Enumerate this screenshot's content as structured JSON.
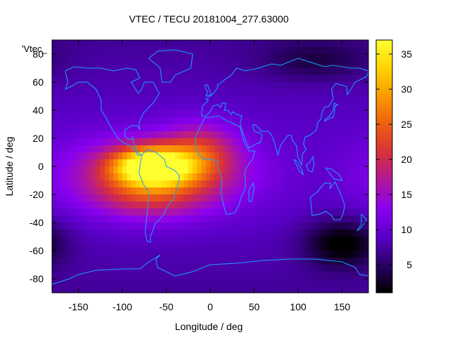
{
  "chart_data": {
    "type": "heatmap",
    "title": "VTEC / TECU 20181004_277.63000",
    "xlabel": "Longitude / deg",
    "ylabel": "Latitude / deg",
    "xlim": [
      -180,
      180
    ],
    "ylim": [
      -90,
      90
    ],
    "xticks": [
      -150,
      -100,
      -50,
      0,
      50,
      100,
      150
    ],
    "yticks": [
      -80,
      -60,
      -40,
      -20,
      0,
      20,
      40,
      60,
      80
    ],
    "colorbar": {
      "ticks": [
        5,
        10,
        15,
        20,
        25,
        30,
        35
      ],
      "range": [
        1,
        37
      ],
      "colormap": [
        "#000000",
        "#2a0066",
        "#5a00c8",
        "#8a00f0",
        "#b0189a",
        "#d8303a",
        "#ee6010",
        "#fb9a00",
        "#ffd400",
        "#ffff30"
      ]
    },
    "series_label": "'Vtec_",
    "grid_step_deg": 5,
    "field_model": {
      "background": 9,
      "features": [
        {
          "name": "equatorial-anomaly-peak",
          "lon": -65,
          "lat": 0,
          "amp": 26,
          "sigma_lon": 30,
          "sigma_lat": 9
        },
        {
          "name": "equatorial-band",
          "lon": -60,
          "lat": -5,
          "amp": 13,
          "sigma_lon": 70,
          "sigma_lat": 18
        },
        {
          "name": "south-crest",
          "lon": -70,
          "lat": -22,
          "amp": 6,
          "sigma_lon": 45,
          "sigma_lat": 12
        },
        {
          "name": "atlantic-lobe",
          "lon": -10,
          "lat": 12,
          "amp": 8,
          "sigma_lon": 28,
          "sigma_lat": 14
        },
        {
          "name": "antarctic-low",
          "lon": 150,
          "lat": -55,
          "amp": -8,
          "sigma_lon": 30,
          "sigma_lat": 12
        },
        {
          "name": "siberian-low",
          "lon": 120,
          "lat": 75,
          "amp": -4,
          "sigma_lon": 45,
          "sigma_lat": 10
        }
      ]
    },
    "coastlines": [
      {
        "name": "north-america",
        "lonlat": [
          [
            -165,
            68
          ],
          [
            -155,
            71
          ],
          [
            -140,
            70
          ],
          [
            -125,
            70
          ],
          [
            -110,
            68
          ],
          [
            -95,
            70
          ],
          [
            -85,
            69
          ],
          [
            -80,
            63
          ],
          [
            -90,
            60
          ],
          [
            -82,
            52
          ],
          [
            -78,
            55
          ],
          [
            -75,
            60
          ],
          [
            -65,
            60
          ],
          [
            -58,
            52
          ],
          [
            -65,
            45
          ],
          [
            -70,
            42
          ],
          [
            -76,
            38
          ],
          [
            -81,
            31
          ],
          [
            -80,
            26
          ],
          [
            -83,
            29
          ],
          [
            -90,
            29
          ],
          [
            -97,
            26
          ],
          [
            -97,
            21
          ],
          [
            -91,
            19
          ],
          [
            -88,
            21
          ],
          [
            -87,
            16
          ],
          [
            -83,
            10
          ],
          [
            -78,
            8
          ],
          [
            -83,
            8
          ],
          [
            -86,
            12
          ],
          [
            -92,
            15
          ],
          [
            -99,
            17
          ],
          [
            -105,
            20
          ],
          [
            -110,
            25
          ],
          [
            -115,
            30
          ],
          [
            -118,
            34
          ],
          [
            -124,
            40
          ],
          [
            -124,
            47
          ],
          [
            -130,
            55
          ],
          [
            -140,
            60
          ],
          [
            -150,
            60
          ],
          [
            -158,
            57
          ],
          [
            -165,
            55
          ],
          [
            -162,
            60
          ],
          [
            -165,
            68
          ]
        ]
      },
      {
        "name": "south-america",
        "lonlat": [
          [
            -78,
            8
          ],
          [
            -72,
            12
          ],
          [
            -62,
            10
          ],
          [
            -52,
            5
          ],
          [
            -50,
            0
          ],
          [
            -40,
            -3
          ],
          [
            -35,
            -7
          ],
          [
            -37,
            -13
          ],
          [
            -39,
            -18
          ],
          [
            -41,
            -22
          ],
          [
            -48,
            -28
          ],
          [
            -53,
            -34
          ],
          [
            -58,
            -38
          ],
          [
            -63,
            -41
          ],
          [
            -65,
            -45
          ],
          [
            -68,
            -50
          ],
          [
            -68,
            -54
          ],
          [
            -72,
            -53
          ],
          [
            -74,
            -47
          ],
          [
            -73,
            -40
          ],
          [
            -71,
            -30
          ],
          [
            -70,
            -18
          ],
          [
            -76,
            -13
          ],
          [
            -81,
            -5
          ],
          [
            -80,
            0
          ],
          [
            -78,
            8
          ]
        ]
      },
      {
        "name": "africa",
        "lonlat": [
          [
            -17,
            21
          ],
          [
            -16,
            12
          ],
          [
            -12,
            8
          ],
          [
            -8,
            5
          ],
          [
            0,
            5
          ],
          [
            8,
            4
          ],
          [
            9,
            -1
          ],
          [
            12,
            -6
          ],
          [
            13,
            -12
          ],
          [
            12,
            -18
          ],
          [
            15,
            -27
          ],
          [
            18,
            -34
          ],
          [
            22,
            -34
          ],
          [
            28,
            -33
          ],
          [
            33,
            -27
          ],
          [
            35,
            -22
          ],
          [
            40,
            -16
          ],
          [
            40,
            -10
          ],
          [
            39,
            -5
          ],
          [
            42,
            0
          ],
          [
            48,
            5
          ],
          [
            51,
            11
          ],
          [
            44,
            11
          ],
          [
            38,
            18
          ],
          [
            34,
            28
          ],
          [
            25,
            31
          ],
          [
            20,
            32
          ],
          [
            10,
            36
          ],
          [
            0,
            35
          ],
          [
            -6,
            35
          ],
          [
            -10,
            30
          ],
          [
            -17,
            21
          ]
        ]
      },
      {
        "name": "eurasia",
        "lonlat": [
          [
            -10,
            36
          ],
          [
            -9,
            43
          ],
          [
            -2,
            47
          ],
          [
            -5,
            48
          ],
          [
            0,
            50
          ],
          [
            5,
            53
          ],
          [
            9,
            57
          ],
          [
            8,
            58
          ],
          [
            11,
            59
          ],
          [
            17,
            62
          ],
          [
            24,
            65
          ],
          [
            30,
            70
          ],
          [
            40,
            68
          ],
          [
            55,
            70
          ],
          [
            70,
            73
          ],
          [
            80,
            72
          ],
          [
            100,
            77
          ],
          [
            115,
            74
          ],
          [
            130,
            71
          ],
          [
            140,
            72
          ],
          [
            160,
            70
          ],
          [
            170,
            70
          ],
          [
            180,
            68
          ],
          [
            178,
            64
          ],
          [
            165,
            60
          ],
          [
            160,
            55
          ],
          [
            156,
            51
          ],
          [
            155,
            57
          ],
          [
            143,
            59
          ],
          [
            138,
            55
          ],
          [
            140,
            48
          ],
          [
            135,
            43
          ],
          [
            130,
            42
          ],
          [
            127,
            38
          ],
          [
            126,
            34
          ],
          [
            122,
            31
          ],
          [
            121,
            26
          ],
          [
            113,
            22
          ],
          [
            108,
            21
          ],
          [
            106,
            16
          ],
          [
            109,
            12
          ],
          [
            105,
            9
          ],
          [
            104,
            1
          ],
          [
            100,
            6
          ],
          [
            98,
            15
          ],
          [
            94,
            18
          ],
          [
            92,
            22
          ],
          [
            88,
            22
          ],
          [
            86,
            20
          ],
          [
            80,
            15
          ],
          [
            77,
            8
          ],
          [
            73,
            17
          ],
          [
            70,
            22
          ],
          [
            66,
            25
          ],
          [
            58,
            25
          ],
          [
            56,
            27
          ],
          [
            50,
            30
          ],
          [
            48,
            29
          ],
          [
            50,
            25
          ],
          [
            56,
            24
          ],
          [
            59,
            22
          ],
          [
            57,
            17
          ],
          [
            52,
            16
          ],
          [
            44,
            13
          ],
          [
            42,
            16
          ],
          [
            38,
            22
          ],
          [
            35,
            28
          ],
          [
            34,
            31
          ],
          [
            36,
            36
          ],
          [
            30,
            37
          ],
          [
            26,
            39
          ],
          [
            24,
            37
          ],
          [
            20,
            40
          ],
          [
            16,
            40
          ],
          [
            18,
            45
          ],
          [
            13,
            45
          ],
          [
            12,
            42
          ],
          [
            8,
            44
          ],
          [
            3,
            43
          ],
          [
            0,
            39
          ],
          [
            -5,
            36
          ],
          [
            -10,
            36
          ]
        ]
      },
      {
        "name": "greenland",
        "lonlat": [
          [
            -55,
            60
          ],
          [
            -45,
            60
          ],
          [
            -40,
            65
          ],
          [
            -22,
            70
          ],
          [
            -20,
            80
          ],
          [
            -40,
            83
          ],
          [
            -60,
            82
          ],
          [
            -70,
            77
          ],
          [
            -57,
            70
          ],
          [
            -55,
            60
          ]
        ]
      },
      {
        "name": "australia",
        "lonlat": [
          [
            114,
            -22
          ],
          [
            122,
            -18
          ],
          [
            130,
            -12
          ],
          [
            137,
            -12
          ],
          [
            136,
            -16
          ],
          [
            142,
            -11
          ],
          [
            145,
            -15
          ],
          [
            150,
            -22
          ],
          [
            153,
            -28
          ],
          [
            151,
            -34
          ],
          [
            148,
            -38
          ],
          [
            141,
            -38
          ],
          [
            138,
            -35
          ],
          [
            132,
            -32
          ],
          [
            124,
            -34
          ],
          [
            116,
            -35
          ],
          [
            115,
            -30
          ],
          [
            114,
            -22
          ]
        ]
      },
      {
        "name": "antarctica",
        "lonlat": [
          [
            -180,
            -84
          ],
          [
            -160,
            -80
          ],
          [
            -150,
            -77
          ],
          [
            -130,
            -74
          ],
          [
            -100,
            -73
          ],
          [
            -80,
            -73
          ],
          [
            -70,
            -68
          ],
          [
            -57,
            -63
          ],
          [
            -62,
            -66
          ],
          [
            -60,
            -72
          ],
          [
            -40,
            -78
          ],
          [
            -20,
            -75
          ],
          [
            0,
            -70
          ],
          [
            30,
            -69
          ],
          [
            60,
            -67
          ],
          [
            90,
            -66
          ],
          [
            120,
            -66
          ],
          [
            150,
            -68
          ],
          [
            165,
            -72
          ],
          [
            170,
            -77
          ],
          [
            180,
            -78
          ]
        ]
      },
      {
        "name": "british-isles",
        "lonlat": [
          [
            -5,
            50
          ],
          [
            1,
            51
          ],
          [
            0,
            53
          ],
          [
            -2,
            56
          ],
          [
            -3,
            58
          ],
          [
            -6,
            58
          ],
          [
            -5,
            55
          ],
          [
            -3,
            53
          ],
          [
            -5,
            50
          ]
        ]
      },
      {
        "name": "japan",
        "lonlat": [
          [
            130,
            32
          ],
          [
            135,
            34
          ],
          [
            140,
            35
          ],
          [
            141,
            38
          ],
          [
            142,
            43
          ],
          [
            145,
            44
          ],
          [
            141,
            45
          ],
          [
            140,
            40
          ],
          [
            136,
            36
          ],
          [
            130,
            33
          ],
          [
            130,
            32
          ]
        ]
      },
      {
        "name": "madagascar",
        "lonlat": [
          [
            44,
            -25
          ],
          [
            47,
            -25
          ],
          [
            50,
            -15
          ],
          [
            49,
            -12
          ],
          [
            44,
            -17
          ],
          [
            44,
            -25
          ]
        ]
      },
      {
        "name": "borneo",
        "lonlat": [
          [
            109,
            1
          ],
          [
            112,
            -3
          ],
          [
            116,
            -4
          ],
          [
            118,
            1
          ],
          [
            117,
            7
          ],
          [
            113,
            3
          ],
          [
            109,
            1
          ]
        ]
      },
      {
        "name": "sumatra",
        "lonlat": [
          [
            95,
            5
          ],
          [
            98,
            4
          ],
          [
            104,
            -2
          ],
          [
            106,
            -6
          ],
          [
            101,
            -3
          ],
          [
            95,
            5
          ]
        ]
      },
      {
        "name": "new-guinea",
        "lonlat": [
          [
            131,
            -1
          ],
          [
            138,
            -2
          ],
          [
            147,
            -6
          ],
          [
            150,
            -10
          ],
          [
            141,
            -9
          ],
          [
            131,
            -1
          ]
        ]
      },
      {
        "name": "new-zealand",
        "lonlat": [
          [
            172,
            -34
          ],
          [
            178,
            -38
          ],
          [
            175,
            -41
          ],
          [
            171,
            -44
          ],
          [
            167,
            -46
          ],
          [
            172,
            -41
          ],
          [
            172,
            -34
          ]
        ]
      }
    ]
  }
}
